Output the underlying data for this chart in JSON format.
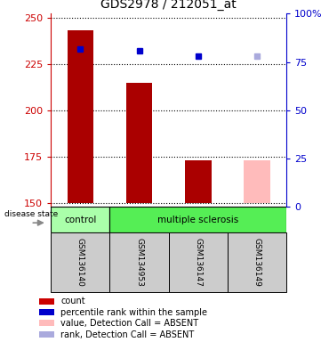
{
  "title": "GDS2978 / 212051_at",
  "samples": [
    "GSM136140",
    "GSM134953",
    "GSM136147",
    "GSM136149"
  ],
  "bar_values": [
    243,
    215,
    173,
    173
  ],
  "bar_colors": [
    "#aa0000",
    "#aa0000",
    "#aa0000",
    "#ffbbbb"
  ],
  "bar_bottom": 150,
  "dot_values": [
    233,
    232,
    229,
    229
  ],
  "dot_colors": [
    "#0000cc",
    "#0000cc",
    "#0000cc",
    "#aaaadd"
  ],
  "ylim_left": [
    148,
    252
  ],
  "ylim_right": [
    0,
    100
  ],
  "yticks_left": [
    150,
    175,
    200,
    225,
    250
  ],
  "yticks_right": [
    0,
    25,
    50,
    75,
    100
  ],
  "ytick_labels_right": [
    "0",
    "25",
    "50",
    "75",
    "100%"
  ],
  "disease_groups": [
    {
      "label": "control",
      "samples": [
        0
      ],
      "color": "#aaffaa"
    },
    {
      "label": "multiple sclerosis",
      "samples": [
        1,
        2,
        3
      ],
      "color": "#55ee55"
    }
  ],
  "disease_label": "disease state",
  "legend_items": [
    {
      "color": "#cc0000",
      "label": "count"
    },
    {
      "color": "#0000cc",
      "label": "percentile rank within the sample"
    },
    {
      "color": "#ffbbbb",
      "label": "value, Detection Call = ABSENT"
    },
    {
      "color": "#aaaadd",
      "label": "rank, Detection Call = ABSENT"
    }
  ],
  "left_axis_color": "#cc0000",
  "right_axis_color": "#0000cc",
  "bar_width": 0.45,
  "fig_width": 3.7,
  "fig_height": 3.84
}
